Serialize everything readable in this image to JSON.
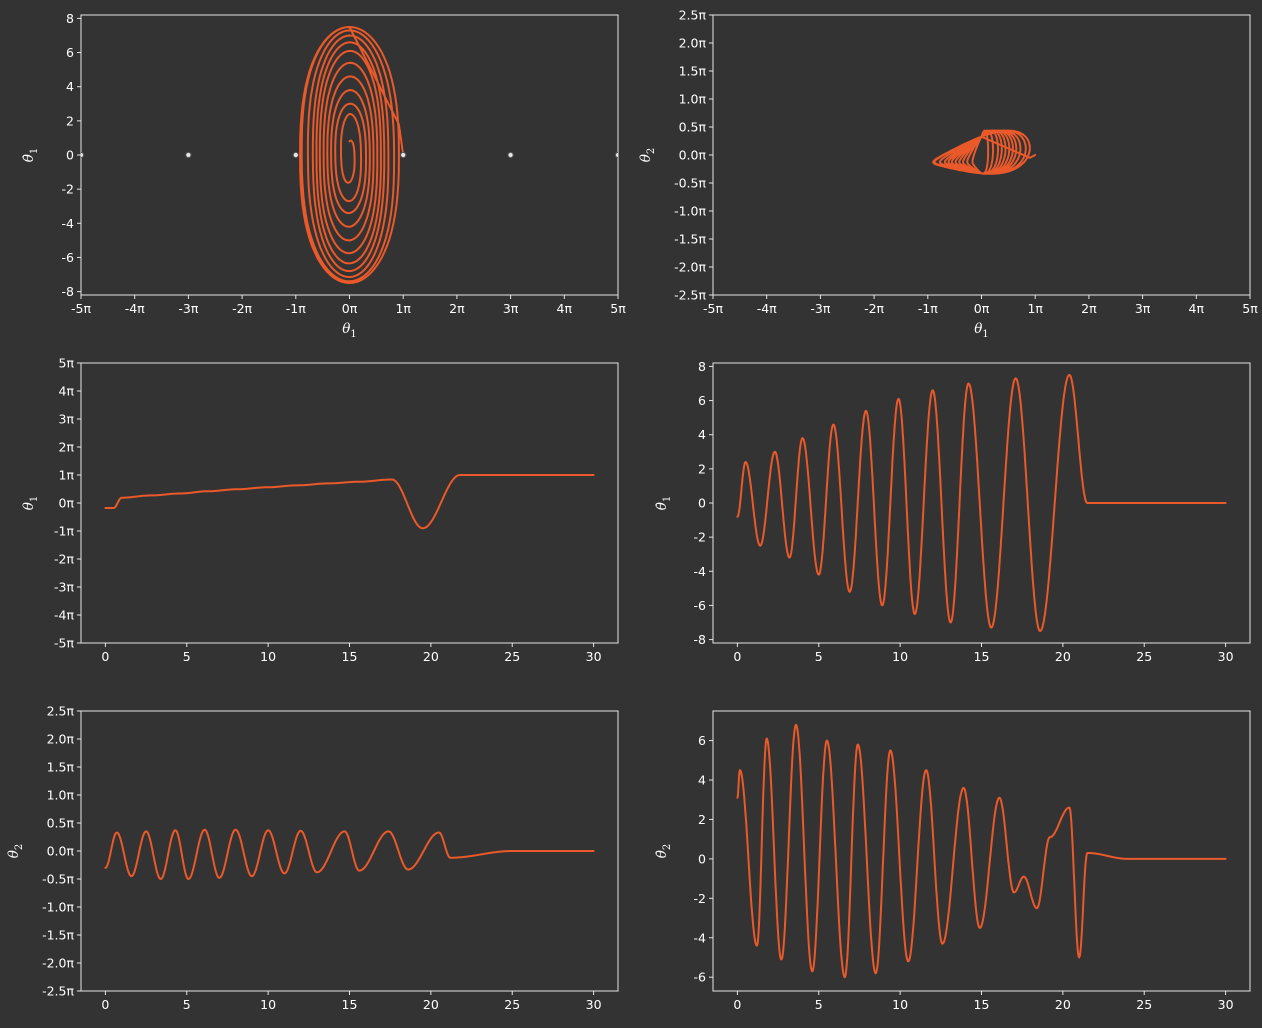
{
  "colors": {
    "background": "#333333",
    "series": "#e9592a",
    "axes": "#e6e6e6",
    "text": "#ffffff",
    "markers": "#e6e6e6"
  },
  "chart_data": [
    {
      "id": "phase-theta1",
      "type": "line",
      "xlabel": "θ1",
      "ylabel": "θ̇1",
      "xlim_pi": [
        -5,
        5
      ],
      "ylim": [
        -8.2,
        8.2
      ],
      "x_tick_labels": [
        "-5π",
        "-4π",
        "-3π",
        "-2π",
        "-1π",
        "0π",
        "1π",
        "2π",
        "3π",
        "4π",
        "5π"
      ],
      "y_tick_labels": [
        "-8",
        "-6",
        "-4",
        "-2",
        "0",
        "2",
        "4",
        "6",
        "8"
      ],
      "equilibrium_points_pi": [
        -5,
        -3,
        -1,
        1,
        3,
        5
      ],
      "series": [
        {
          "amplitudes_pi": [
            0.06,
            0.19,
            0.29,
            0.36,
            0.43,
            0.5,
            0.57,
            0.63,
            0.7,
            0.8,
            0.92
          ],
          "amplitudes_velocity": [
            0.8,
            2.4,
            3.0,
            3.8,
            4.6,
            5.4,
            6.1,
            6.6,
            7.0,
            7.3,
            7.5
          ],
          "settle_theta_pi": 1.0
        }
      ]
    },
    {
      "id": "phase-theta2",
      "type": "line",
      "xlabel": "θ1",
      "ylabel": "θ2",
      "xlim_pi": [
        -5,
        5
      ],
      "ylim_pi": [
        -2.5,
        2.5
      ],
      "x_tick_labels": [
        "-5π",
        "-4π",
        "-3π",
        "-2π",
        "-1π",
        "0π",
        "1π",
        "2π",
        "3π",
        "4π",
        "5π"
      ],
      "y_tick_labels": [
        "-2.5π",
        "-2.0π",
        "-1.5π",
        "-1.0π",
        "-0.5π",
        "0.0π",
        "0.5π",
        "1.0π",
        "1.5π",
        "2.0π",
        "2.5π"
      ],
      "series": [
        {
          "theta1_amplitudes_pi": [
            0.1,
            0.19,
            0.29,
            0.36,
            0.43,
            0.5,
            0.57,
            0.63,
            0.7,
            0.8,
            0.9
          ],
          "theta2_amplitude_pi": 0.37,
          "end_point_pi": [
            1.0,
            0.0
          ]
        }
      ]
    },
    {
      "id": "theta1-time",
      "type": "line",
      "xlabel": "",
      "ylabel": "θ1",
      "xlim": [
        -1.5,
        31.5
      ],
      "ylim_pi": [
        -5,
        5
      ],
      "x_tick_labels": [
        "0",
        "5",
        "10",
        "15",
        "20",
        "25",
        "30"
      ],
      "y_tick_labels": [
        "-5π",
        "-4π",
        "-3π",
        "-2π",
        "-1π",
        "0π",
        "1π",
        "2π",
        "3π",
        "4π",
        "5π"
      ],
      "series": [
        {
          "peak_times": [
            0.5,
            1.0,
            2.8,
            4.6,
            6.3,
            8.1,
            9.9,
            11.8,
            13.7,
            15.6,
            17.6,
            19.5
          ],
          "peak_values_pi": [
            -0.18,
            0.19,
            0.27,
            0.34,
            0.42,
            0.49,
            0.56,
            0.63,
            0.7,
            0.76,
            0.84,
            -0.9
          ],
          "settle_time": 21.8,
          "settle_value_pi": 1.0,
          "t_end": 30
        }
      ]
    },
    {
      "id": "theta1dot-time",
      "type": "line",
      "xlabel": "",
      "ylabel": "θ̇1",
      "xlim": [
        -1.5,
        31.5
      ],
      "ylim": [
        -8.2,
        8.2
      ],
      "x_tick_labels": [
        "0",
        "5",
        "10",
        "15",
        "20",
        "25",
        "30"
      ],
      "y_tick_labels": [
        "-8",
        "-6",
        "-4",
        "-2",
        "0",
        "2",
        "4",
        "6",
        "8"
      ],
      "series": [
        {
          "peak_times": [
            0.5,
            1.4,
            2.3,
            3.2,
            4.0,
            5.0,
            5.9,
            6.9,
            7.9,
            8.9,
            9.9,
            10.9,
            12.0,
            13.1,
            14.2,
            15.6,
            17.1,
            18.6,
            20.4
          ],
          "peak_values": [
            2.4,
            -2.5,
            3.0,
            -3.2,
            3.8,
            -4.2,
            4.6,
            -5.2,
            5.4,
            -6.0,
            6.1,
            -6.5,
            6.6,
            -7.0,
            7.0,
            -7.3,
            7.3,
            -7.5,
            7.5
          ],
          "settle_time": 21.5,
          "t_end": 30
        }
      ]
    },
    {
      "id": "theta2-time",
      "type": "line",
      "xlabel": "",
      "ylabel": "θ2",
      "xlim": [
        -1.5,
        31.5
      ],
      "ylim_pi": [
        -2.5,
        2.5
      ],
      "x_tick_labels": [
        "0",
        "5",
        "10",
        "15",
        "20",
        "25",
        "30"
      ],
      "y_tick_labels": [
        "-2.5π",
        "-2.0π",
        "-1.5π",
        "-1.0π",
        "-0.5π",
        "0.0π",
        "0.5π",
        "1.0π",
        "1.5π",
        "2.0π",
        "2.5π"
      ],
      "series": [
        {
          "peak_times": [
            0.7,
            1.6,
            2.5,
            3.4,
            4.3,
            5.1,
            6.1,
            7.0,
            8.0,
            9.0,
            10.0,
            11.0,
            12.0,
            13.0,
            14.7,
            15.6,
            17.4,
            18.6,
            20.5,
            21.2
          ],
          "peak_values_pi": [
            0.33,
            -0.45,
            0.35,
            -0.5,
            0.37,
            -0.5,
            0.38,
            -0.48,
            0.38,
            -0.45,
            0.37,
            -0.4,
            0.36,
            -0.38,
            0.35,
            -0.35,
            0.35,
            -0.33,
            0.33,
            -0.12
          ],
          "settle_time": 25,
          "t_end": 30
        }
      ]
    },
    {
      "id": "theta2dot-time",
      "type": "line",
      "xlabel": "",
      "ylabel": "θ̇2",
      "xlim": [
        -1.5,
        31.5
      ],
      "ylim": [
        -6.7,
        7.5
      ],
      "x_tick_labels": [
        "0",
        "5",
        "10",
        "15",
        "20",
        "25",
        "30"
      ],
      "y_tick_labels": [
        "-6",
        "-4",
        "-2",
        "0",
        "2",
        "4",
        "6"
      ],
      "series": [
        {
          "peak_times": [
            0.15,
            1.2,
            1.8,
            2.7,
            3.6,
            4.6,
            5.5,
            6.6,
            7.4,
            8.5,
            9.4,
            10.5,
            11.6,
            12.6,
            13.9,
            14.9,
            16.1,
            17.0,
            17.6,
            18.4,
            19.2,
            20.4,
            21.0,
            21.5
          ],
          "peak_values": [
            4.5,
            -4.4,
            6.1,
            -5.1,
            6.8,
            -5.7,
            6.0,
            -6.0,
            5.8,
            -5.8,
            5.5,
            -5.2,
            4.5,
            -4.3,
            3.6,
            -3.5,
            3.1,
            -1.7,
            -0.9,
            -2.5,
            1.1,
            2.6,
            -5.0,
            0.3
          ],
          "settle_time": 24,
          "t_end": 30
        }
      ]
    }
  ]
}
